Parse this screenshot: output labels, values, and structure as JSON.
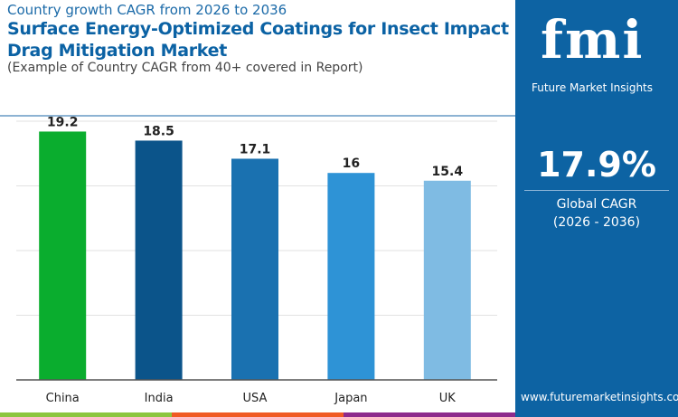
{
  "header": {
    "kicker": "Country growth CAGR from 2026 to 2036",
    "title": "Surface Energy-Optimized Coatings for Insect Impact Drag Mitigation Market",
    "subtitle": "(Example of Country CAGR from 40+ covered in Report)"
  },
  "panel": {
    "logo": "fmi",
    "brand": "Future Market Insights",
    "cagr_value": "17.9%",
    "cagr_label": "Global CAGR",
    "cagr_period": "(2026 - 2036)",
    "url": "www.futuremarketinsights.com",
    "bg": "#0d63a3"
  },
  "chart_data": {
    "type": "bar",
    "categories": [
      "China",
      "India",
      "USA",
      "Japan",
      "UK"
    ],
    "values": [
      19.2,
      18.5,
      17.1,
      16,
      15.4
    ],
    "colors": [
      "#0aad2e",
      "#0b548a",
      "#1a71b0",
      "#2e93d6",
      "#7fbbe3"
    ],
    "ylim": [
      0,
      20
    ],
    "grid": true,
    "xlabel": "",
    "ylabel": ""
  },
  "strip_colors": [
    "#8cc63f",
    "#f05a24",
    "#8e2a8c"
  ]
}
